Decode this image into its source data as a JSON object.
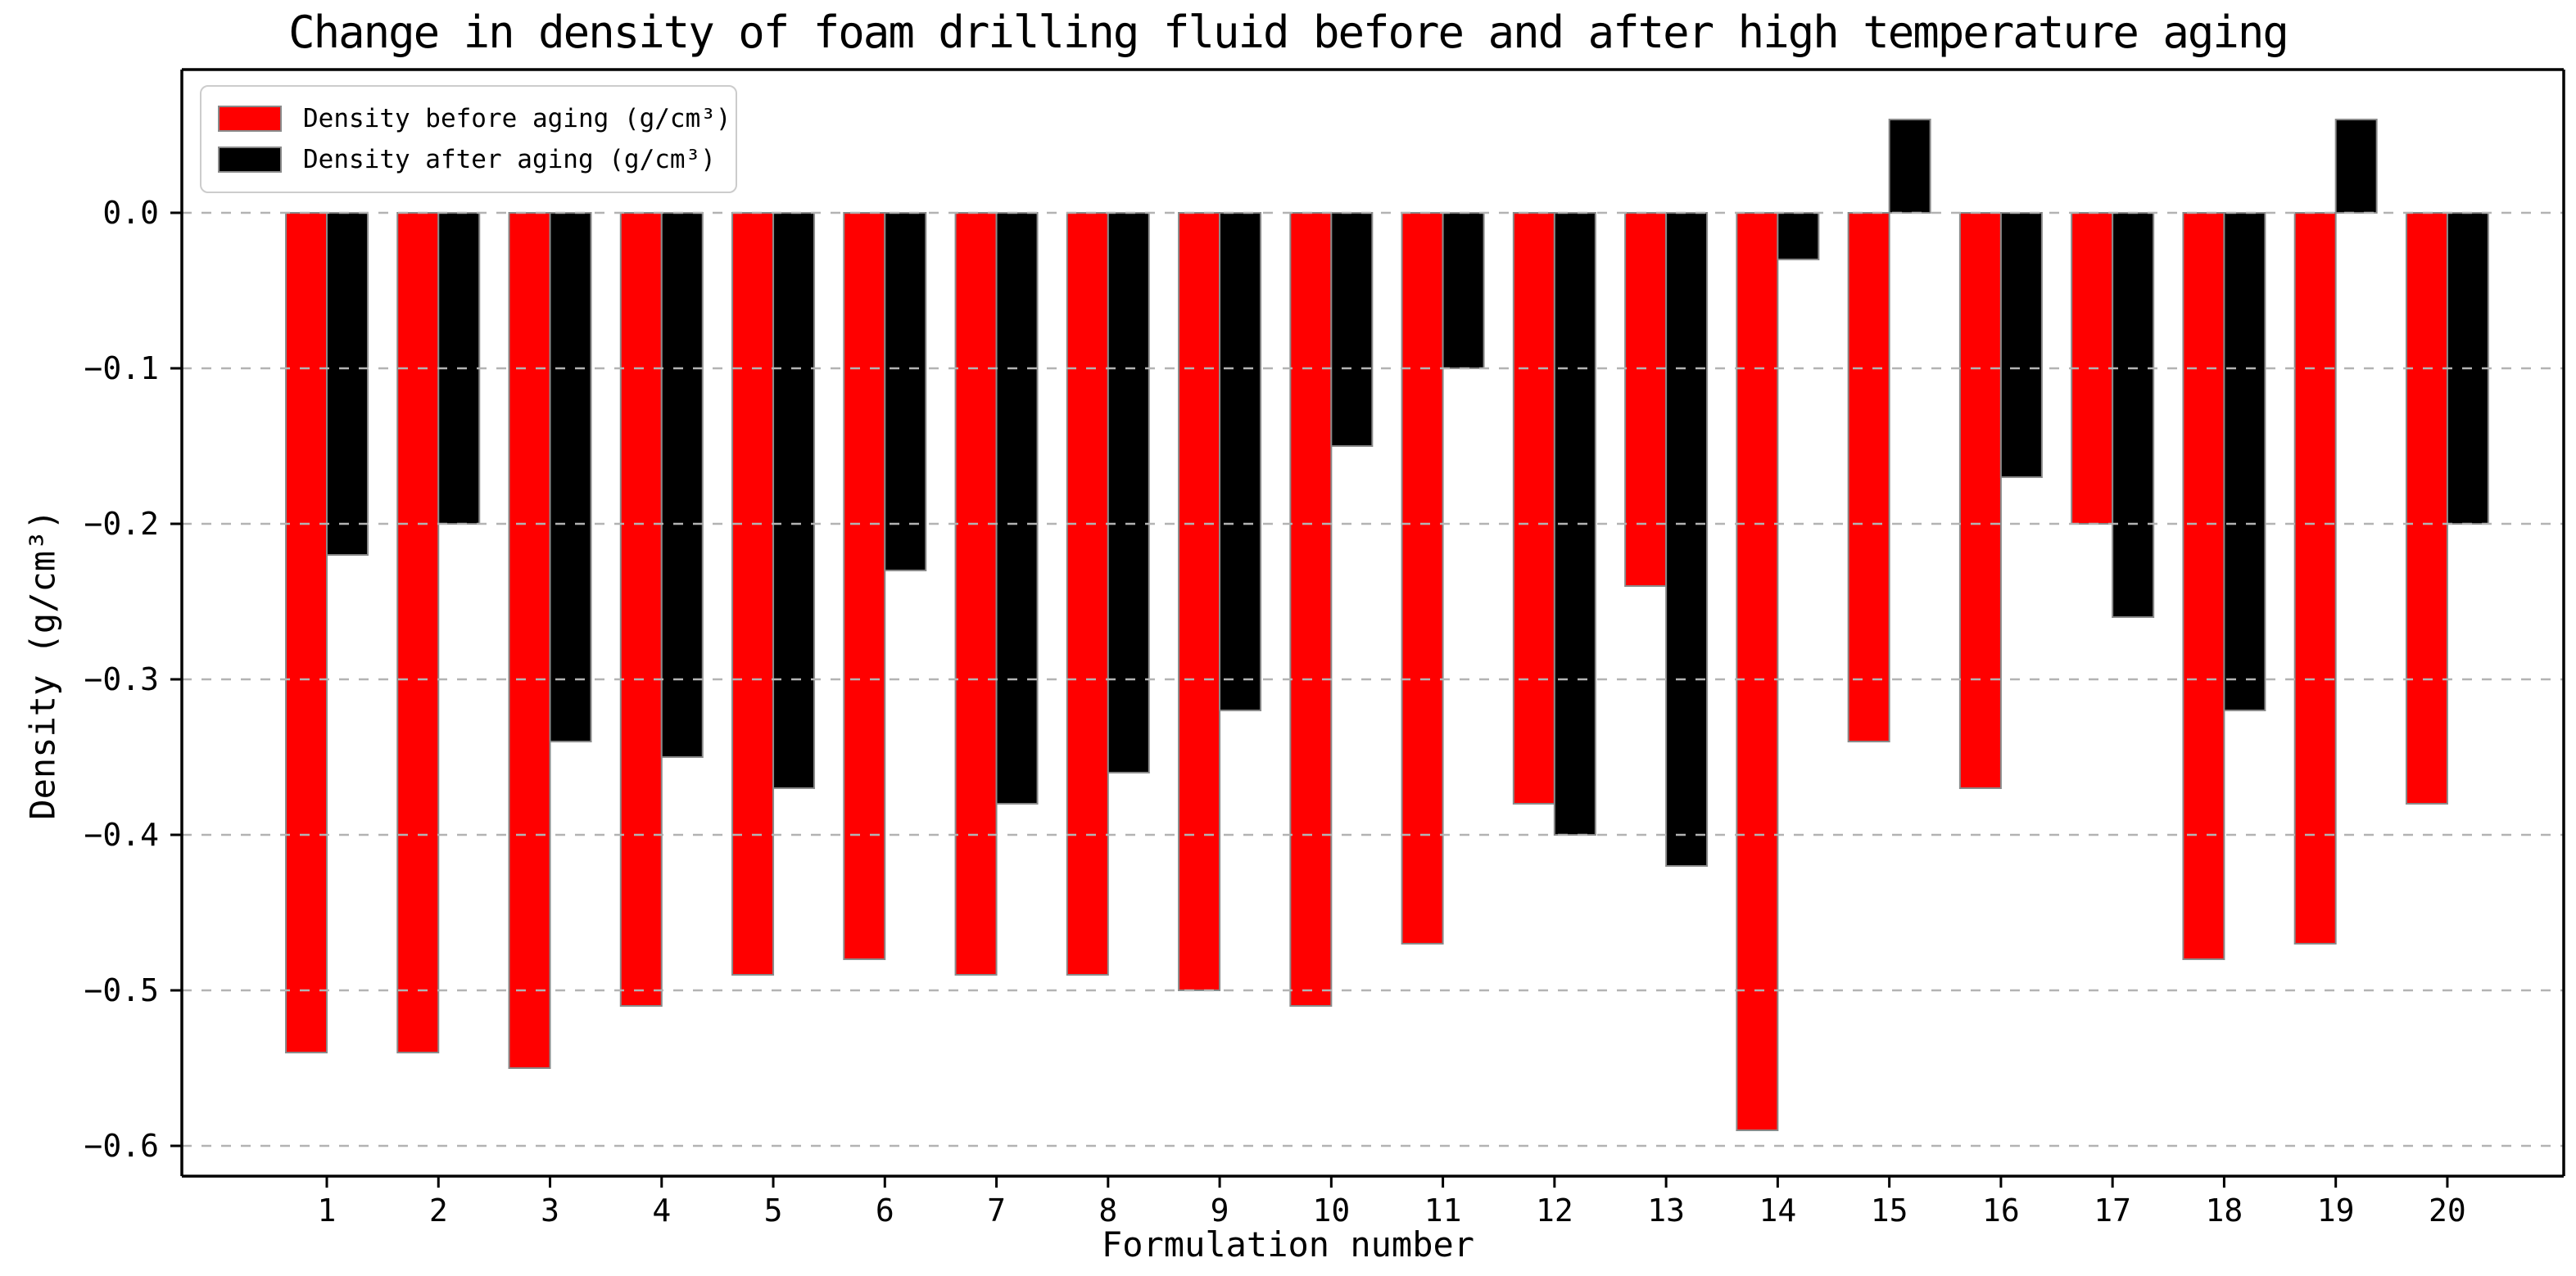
{
  "chart_data": {
    "type": "bar",
    "title": "Change in density of foam drilling fluid before and after high temperature aging",
    "xlabel": "Formulation number",
    "ylabel": "Density (g/cm³)",
    "categories": [
      "1",
      "2",
      "3",
      "4",
      "5",
      "6",
      "7",
      "8",
      "9",
      "10",
      "11",
      "12",
      "13",
      "14",
      "15",
      "16",
      "17",
      "18",
      "19",
      "20"
    ],
    "series": [
      {
        "name": "Density before aging (g/cm³)",
        "color": "#ff0000",
        "values": [
          -0.54,
          -0.54,
          -0.55,
          -0.51,
          -0.49,
          -0.48,
          -0.49,
          -0.49,
          -0.5,
          -0.51,
          -0.47,
          -0.38,
          -0.24,
          -0.59,
          -0.34,
          -0.37,
          -0.2,
          -0.48,
          -0.47,
          -0.38
        ]
      },
      {
        "name": "Density after aging (g/cm³)",
        "color": "#000000",
        "values": [
          -0.22,
          -0.2,
          -0.34,
          -0.35,
          -0.37,
          -0.23,
          -0.38,
          -0.36,
          -0.32,
          -0.15,
          -0.1,
          -0.4,
          -0.42,
          -0.03,
          0.06,
          -0.17,
          -0.26,
          -0.32,
          0.06,
          -0.2
        ]
      }
    ],
    "yticks": [
      0.0,
      -0.1,
      -0.2,
      -0.3,
      -0.4,
      -0.5,
      -0.6
    ],
    "ytick_labels": [
      "0.0",
      "−0.1",
      "−0.2",
      "−0.3",
      "−0.4",
      "−0.5",
      "−0.6"
    ],
    "ylim": [
      -0.62,
      0.092
    ],
    "grid": {
      "axis": "y",
      "style": "dashed",
      "color": "#b3b3b3",
      "on_top_of_bars": true
    },
    "legend_position": "upper left",
    "bar_edge_color": "#8a8a8a",
    "axis_color": "#000000"
  }
}
